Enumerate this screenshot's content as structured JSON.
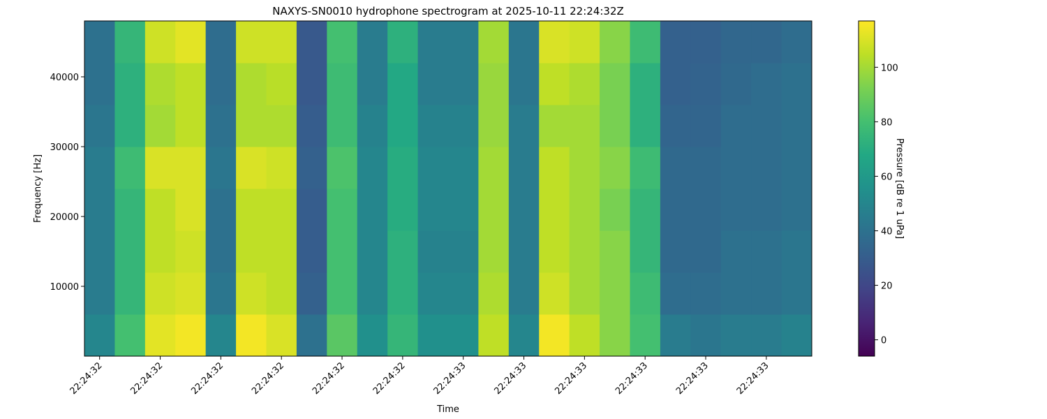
{
  "chart_data": {
    "type": "heatmap",
    "title": "NAXYS-SN0010 hydrophone spectrogram at 2025-10-11 22:24:32Z",
    "xlabel": "Time",
    "ylabel": "Frequency [Hz]",
    "colorbar_label": "Pressure [dB re 1 uPa]",
    "colormap": "viridis",
    "x": [
      32.4,
      32.45,
      32.5,
      32.55,
      32.6,
      32.65,
      32.7,
      32.75,
      32.8,
      32.85,
      32.9,
      32.95,
      33.0,
      33.05,
      33.1,
      33.15,
      33.2,
      33.25,
      33.3,
      33.35,
      33.4,
      33.45,
      33.5,
      33.55
    ],
    "y": [
      3000,
      9000,
      15000,
      21000,
      27000,
      33000,
      39000,
      45000
    ],
    "z": [
      [
        50,
        80,
        112,
        115,
        50,
        115,
        110,
        40,
        85,
        55,
        75,
        55,
        55,
        105,
        50,
        115,
        105,
        95,
        80,
        45,
        42,
        45,
        45,
        48
      ],
      [
        45,
        75,
        108,
        110,
        42,
        108,
        105,
        32,
        80,
        50,
        72,
        50,
        50,
        102,
        45,
        108,
        100,
        95,
        78,
        38,
        38,
        40,
        40,
        42
      ],
      [
        45,
        75,
        105,
        108,
        40,
        105,
        105,
        30,
        80,
        50,
        72,
        48,
        48,
        100,
        45,
        105,
        100,
        95,
        75,
        36,
        36,
        40,
        40,
        42
      ],
      [
        45,
        75,
        105,
        110,
        40,
        105,
        105,
        30,
        80,
        50,
        70,
        50,
        50,
        100,
        45,
        105,
        100,
        92,
        75,
        36,
        36,
        38,
        38,
        40
      ],
      [
        45,
        78,
        110,
        110,
        42,
        110,
        108,
        32,
        82,
        50,
        70,
        50,
        50,
        100,
        45,
        105,
        100,
        95,
        78,
        36,
        36,
        38,
        38,
        40
      ],
      [
        42,
        72,
        100,
        105,
        40,
        102,
        102,
        30,
        78,
        48,
        68,
        48,
        48,
        98,
        45,
        100,
        100,
        92,
        72,
        34,
        34,
        38,
        38,
        40
      ],
      [
        40,
        72,
        102,
        105,
        38,
        102,
        104,
        28,
        78,
        45,
        68,
        45,
        45,
        98,
        42,
        105,
        102,
        92,
        72,
        32,
        33,
        36,
        38,
        40
      ],
      [
        40,
        75,
        108,
        112,
        38,
        108,
        108,
        28,
        80,
        45,
        72,
        45,
        45,
        100,
        42,
        110,
        108,
        95,
        78,
        32,
        32,
        35,
        35,
        38
      ]
    ],
    "xlim": [
      32.375,
      33.575
    ],
    "xticks": [
      {
        "value": 32.4,
        "label": "22:24:32"
      },
      {
        "value": 32.5,
        "label": "22:24:32"
      },
      {
        "value": 32.6,
        "label": "22:24:32"
      },
      {
        "value": 32.7,
        "label": "22:24:32"
      },
      {
        "value": 32.8,
        "label": "22:24:32"
      },
      {
        "value": 32.9,
        "label": "22:24:32"
      },
      {
        "value": 33.0,
        "label": "22:24:33"
      },
      {
        "value": 33.1,
        "label": "22:24:33"
      },
      {
        "value": 33.2,
        "label": "22:24:33"
      },
      {
        "value": 33.3,
        "label": "22:24:33"
      },
      {
        "value": 33.4,
        "label": "22:24:33"
      },
      {
        "value": 33.5,
        "label": "22:24:33"
      }
    ],
    "ylim": [
      0,
      48000
    ],
    "yticks": [
      10000,
      20000,
      30000,
      40000
    ],
    "clim": [
      -6,
      117
    ],
    "cticks": [
      0,
      20,
      40,
      60,
      80,
      100
    ]
  }
}
